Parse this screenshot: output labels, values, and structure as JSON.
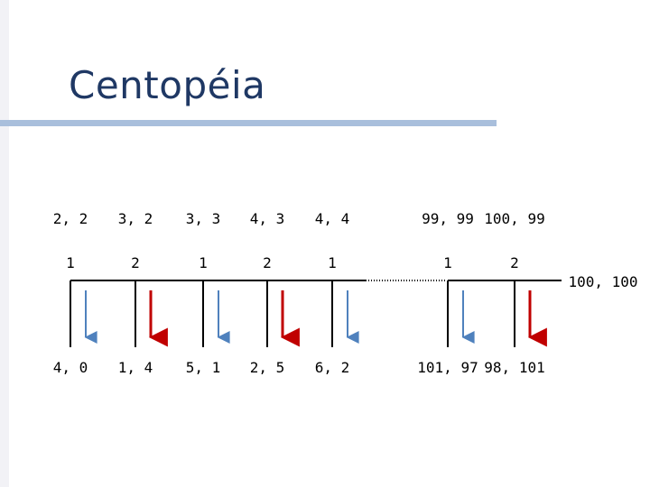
{
  "title": "Centopéia",
  "colors": {
    "title": "#1f3864",
    "rule": "#a9bfdc",
    "left_bar": "#f2f2f6",
    "arrow_blue": "#4f81bd",
    "arrow_red": "#c00000",
    "line": "#000000"
  },
  "nodes": [
    {
      "player": "1",
      "continue_payoff": "2,2",
      "stop_payoff": "4,0",
      "arrow": "blue"
    },
    {
      "player": "2",
      "continue_payoff": "3,2",
      "stop_payoff": "1,4",
      "arrow": "red"
    },
    {
      "player": "1",
      "continue_payoff": "3,3",
      "stop_payoff": "5,1",
      "arrow": "blue"
    },
    {
      "player": "2",
      "continue_payoff": "4,3",
      "stop_payoff": "2,5",
      "arrow": "red"
    },
    {
      "player": "1",
      "continue_payoff": "4,4",
      "stop_payoff": "6,2",
      "arrow": "blue"
    },
    {
      "player": "1",
      "continue_payoff": "99,99",
      "stop_payoff": "101,97",
      "arrow": "blue"
    },
    {
      "player": "2",
      "continue_payoff": "100,99",
      "stop_payoff": "98,101",
      "arrow": "red"
    }
  ],
  "final_payoff": "100,100"
}
